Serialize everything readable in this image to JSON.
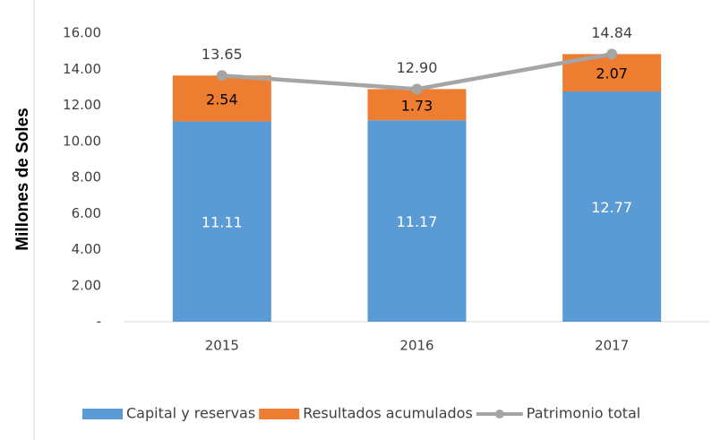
{
  "chart_data": {
    "type": "bar",
    "stacked": true,
    "y_label": "Millones de Soles",
    "categories": [
      "2015",
      "2016",
      "2017"
    ],
    "series": [
      {
        "name": "Capital y reservas",
        "color": "#5b9bd5",
        "values": [
          11.11,
          11.17,
          12.77
        ]
      },
      {
        "name": "Resultados acumulados",
        "color": "#ed7d31",
        "values": [
          2.54,
          1.73,
          2.07
        ]
      },
      {
        "name": "Patrimonio total",
        "color": "#a5a5a5",
        "type": "line",
        "values": [
          13.65,
          12.9,
          14.84
        ],
        "value_labels": [
          "13.65",
          "12.90",
          "14.84"
        ]
      }
    ],
    "ylim": [
      0,
      16
    ],
    "yticks": [
      {
        "value": 0,
        "label": "-"
      },
      {
        "value": 2,
        "label": "2.00"
      },
      {
        "value": 4,
        "label": "4.00"
      },
      {
        "value": 6,
        "label": "6.00"
      },
      {
        "value": 8,
        "label": "8.00"
      },
      {
        "value": 10,
        "label": "10.00"
      },
      {
        "value": 12,
        "label": "12.00"
      },
      {
        "value": 14,
        "label": "14.00"
      },
      {
        "value": 16,
        "label": "16.00"
      }
    ],
    "grid": false,
    "legend": "bottom"
  }
}
